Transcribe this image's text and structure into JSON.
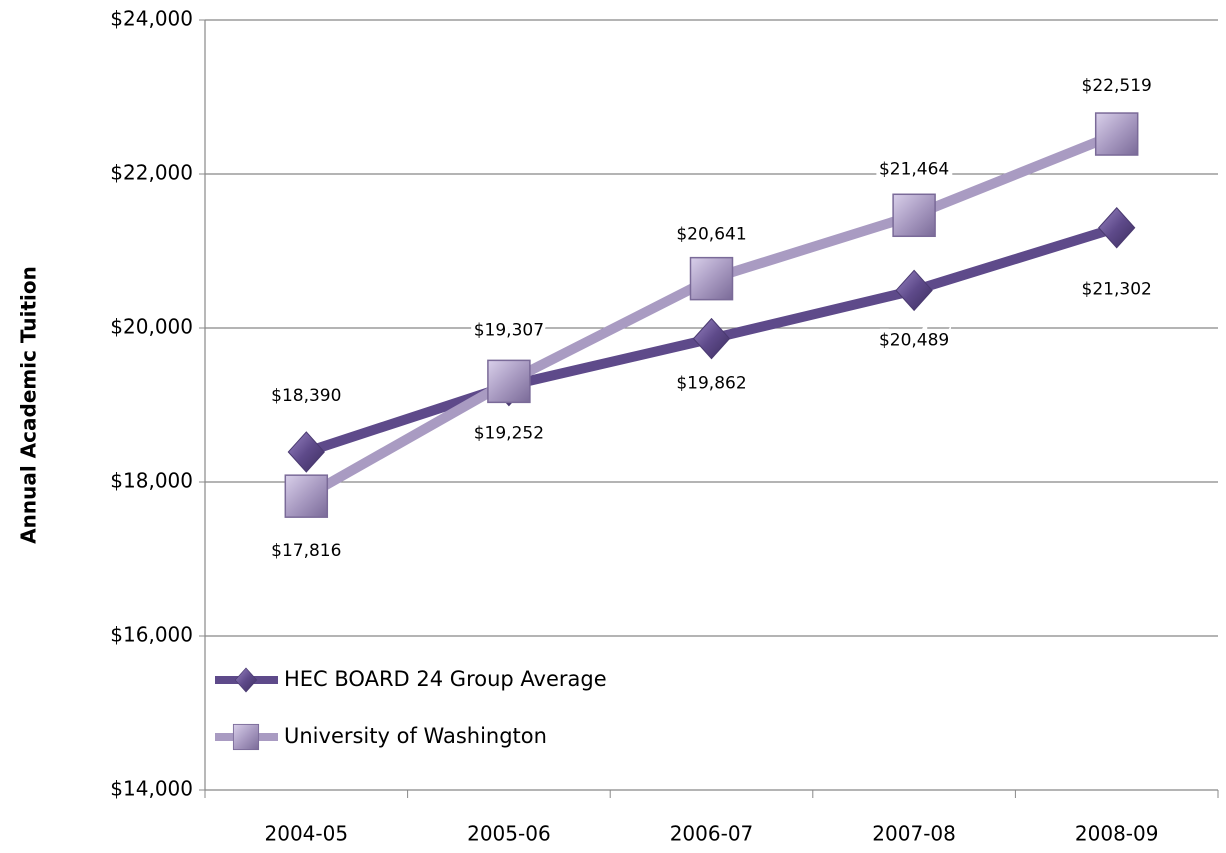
{
  "chart_data": {
    "type": "line",
    "y_axis_label": "Annual Academic Tuition",
    "categories": [
      "2004-05",
      "2005-06",
      "2006-07",
      "2007-08",
      "2008-09"
    ],
    "series": [
      {
        "name": "HEC BOARD 24 Group Average",
        "color": "#5e4a8a",
        "marker": "diamond",
        "values": [
          18390,
          19252,
          19862,
          20489,
          21302
        ],
        "value_labels": [
          "$18,390",
          "$19,252",
          "$19,862",
          "$20,489",
          "$21,302"
        ]
      },
      {
        "name": "University of Washington",
        "color": "#a99bc2",
        "marker": "square",
        "values": [
          17816,
          19307,
          20641,
          21464,
          22519
        ],
        "value_labels": [
          "$17,816",
          "$19,307",
          "$20,641",
          "$21,464",
          "$22,519"
        ]
      }
    ],
    "ylim": [
      14000,
      24000
    ],
    "yticks": [
      {
        "value": 14000,
        "label": "$14,000"
      },
      {
        "value": 16000,
        "label": "$16,000"
      },
      {
        "value": 18000,
        "label": "$18,000"
      },
      {
        "value": 20000,
        "label": "$20,000"
      },
      {
        "value": 22000,
        "label": "$22,000"
      },
      {
        "value": 24000,
        "label": "$24,000"
      }
    ],
    "grid": true,
    "legend": "lower left"
  }
}
